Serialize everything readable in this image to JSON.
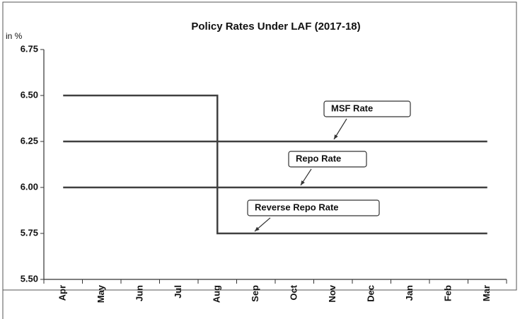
{
  "chart_data": {
    "type": "line",
    "title": "Policy Rates Under LAF (2017-18)",
    "y_label": "in %",
    "categories": [
      "Apr",
      "May",
      "Jun",
      "Jul",
      "Aug",
      "Sep",
      "Oct",
      "Nov",
      "Dec",
      "Jan",
      "Feb",
      "Mar"
    ],
    "series": [
      {
        "name": "MSF Rate",
        "color": "#404040",
        "values": [
          6.5,
          6.5,
          6.5,
          6.5,
          6.25,
          6.25,
          6.25,
          6.25,
          6.25,
          6.25,
          6.25,
          6.25
        ]
      },
      {
        "name": "Repo Rate",
        "color": "#404040",
        "values": [
          6.25,
          6.25,
          6.25,
          6.25,
          6.0,
          6.0,
          6.0,
          6.0,
          6.0,
          6.0,
          6.0,
          6.0
        ]
      },
      {
        "name": "Reverse Repo Rate",
        "color": "#404040",
        "values": [
          6.0,
          6.0,
          6.0,
          6.0,
          5.75,
          5.75,
          5.75,
          5.75,
          5.75,
          5.75,
          5.75,
          5.75
        ]
      }
    ],
    "step": true,
    "ylim": [
      5.5,
      6.75
    ],
    "yticks": [
      {
        "value": 5.5,
        "label": "5.50"
      },
      5.75,
      {
        "value": 6.0,
        "label": "6.00"
      },
      6.25,
      {
        "value": 6.5,
        "label": "6.50"
      },
      6.75
    ]
  }
}
